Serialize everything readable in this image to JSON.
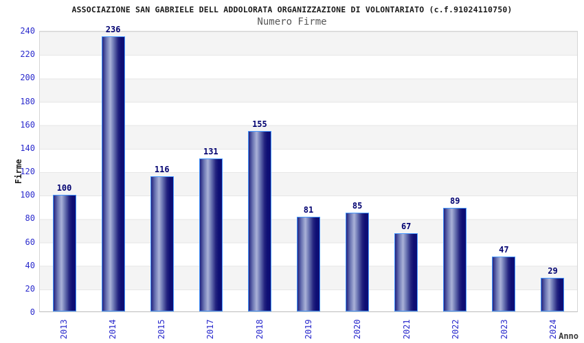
{
  "chart_data": {
    "type": "bar",
    "title": "ASSOCIAZIONE SAN GABRIELE DELL ADDOLORATA ORGANIZZAZIONE DI VOLONTARIATO (c.f.91024110750)",
    "subtitle": "Numero Firme",
    "xlabel": "Anno",
    "ylabel": "Firme",
    "categories": [
      "2013",
      "2014",
      "2015",
      "2017",
      "2018",
      "2019",
      "2020",
      "2021",
      "2022",
      "2023",
      "2024"
    ],
    "values": [
      100,
      236,
      116,
      131,
      155,
      81,
      85,
      67,
      89,
      47,
      29
    ],
    "ylim": [
      0,
      240
    ],
    "ytick_step": 20,
    "grid": "horizontal-bands-alternating",
    "legend": "none",
    "colors": {
      "bar_dark": "#0e0e74",
      "bar_light": "#aab2d8",
      "bar_border": "#4496ff",
      "tick_label": "#2929cc",
      "value_label": "#000070",
      "band_gray": "#f4f4f4",
      "band_white": "#ffffff",
      "grid_line": "#e6e6e6",
      "title_color": "#1a1a1a",
      "subtitle_color": "#555555",
      "xlabel_color": "#3a3a3a"
    }
  }
}
